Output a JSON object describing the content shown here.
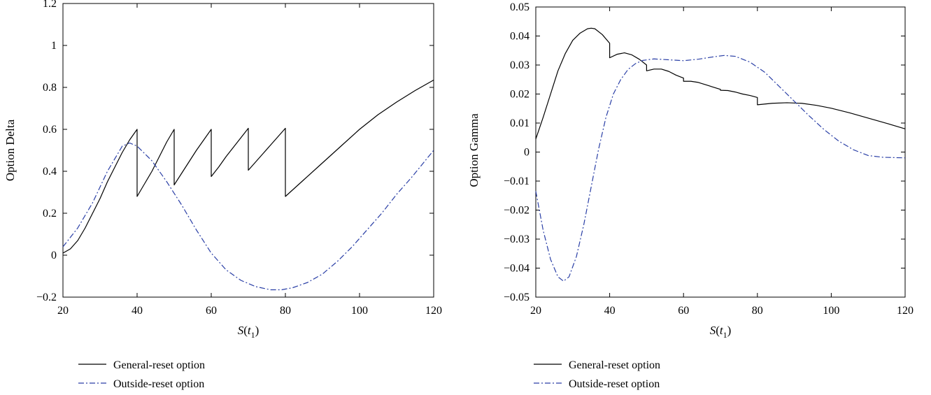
{
  "chart_data": [
    {
      "type": "line",
      "title": "",
      "xlabel_main": "S",
      "xlabel_arg": "t",
      "xlabel_sub": "1",
      "ylabel": "Option Delta",
      "xlim": [
        20,
        120
      ],
      "ylim": [
        -0.2,
        1.2
      ],
      "xticks": [
        "20",
        "40",
        "60",
        "80",
        "100",
        "120"
      ],
      "yticks": [
        "−0.2",
        "0",
        "0.2",
        "0.4",
        "0.6",
        "0.8",
        "1",
        "1.2"
      ],
      "yticks_values": [
        -0.2,
        0,
        0.2,
        0.4,
        0.6,
        0.8,
        1.0,
        1.2
      ],
      "grid": false,
      "legend_position": "below",
      "series": [
        {
          "name": "General-reset option",
          "color": "#000000",
          "style": "solid",
          "x": [
            20,
            22,
            24,
            26,
            28,
            30,
            32,
            34,
            36,
            38,
            40,
            40,
            42,
            44,
            46,
            48,
            50,
            50,
            52,
            54,
            56,
            58,
            60,
            60,
            62,
            64,
            66,
            68,
            70,
            70,
            72,
            74,
            76,
            78,
            80,
            80,
            85,
            90,
            95,
            100,
            105,
            110,
            115,
            120
          ],
          "y": [
            0.01,
            0.03,
            0.07,
            0.13,
            0.2,
            0.27,
            0.35,
            0.42,
            0.49,
            0.55,
            0.6,
            0.28,
            0.34,
            0.4,
            0.47,
            0.54,
            0.6,
            0.335,
            0.39,
            0.445,
            0.5,
            0.55,
            0.6,
            0.375,
            0.42,
            0.47,
            0.515,
            0.56,
            0.605,
            0.405,
            0.445,
            0.485,
            0.525,
            0.565,
            0.605,
            0.28,
            0.36,
            0.44,
            0.52,
            0.6,
            0.67,
            0.73,
            0.785,
            0.835
          ]
        },
        {
          "name": "Outside-reset option",
          "color": "#2a3fa6",
          "style": "dashdot",
          "x": [
            20,
            24,
            28,
            32,
            36,
            38,
            40,
            44,
            48,
            52,
            56,
            60,
            64,
            68,
            72,
            76,
            79,
            82,
            86,
            90,
            94,
            98,
            102,
            106,
            110,
            114,
            120
          ],
          "y": [
            0.04,
            0.13,
            0.25,
            0.4,
            0.52,
            0.535,
            0.52,
            0.45,
            0.35,
            0.24,
            0.12,
            0.01,
            -0.07,
            -0.12,
            -0.15,
            -0.165,
            -0.165,
            -0.155,
            -0.13,
            -0.09,
            -0.03,
            0.04,
            0.12,
            0.2,
            0.29,
            0.37,
            0.5
          ]
        }
      ]
    },
    {
      "type": "line",
      "title": "",
      "xlabel_main": "S",
      "xlabel_arg": "t",
      "xlabel_sub": "1",
      "ylabel": "Option Gamma",
      "xlim": [
        20,
        120
      ],
      "ylim": [
        -0.05,
        0.05
      ],
      "xticks": [
        "20",
        "40",
        "60",
        "80",
        "100",
        "120"
      ],
      "yticks": [
        "−0.05",
        "−0.04",
        "−0.03",
        "−0.02",
        "−0.01",
        "0",
        "0.01",
        "0.02",
        "0.03",
        "0.04",
        "0.05"
      ],
      "yticks_values": [
        -0.05,
        -0.04,
        -0.03,
        -0.02,
        -0.01,
        0,
        0.01,
        0.02,
        0.03,
        0.04,
        0.05
      ],
      "grid": false,
      "legend_position": "below",
      "series": [
        {
          "name": "General-reset option",
          "color": "#000000",
          "style": "solid",
          "x": [
            20,
            22,
            24,
            26,
            28,
            30,
            32,
            34,
            35,
            36,
            38,
            40,
            40,
            42,
            44,
            46,
            48,
            50,
            50,
            52,
            54,
            56,
            58,
            60,
            60,
            62,
            64,
            66,
            68,
            70,
            70,
            72,
            74,
            76,
            78,
            80,
            80,
            84,
            88,
            92,
            96,
            100,
            105,
            110,
            115,
            120
          ],
          "y": [
            0.0045,
            0.012,
            0.02,
            0.028,
            0.034,
            0.0385,
            0.041,
            0.0425,
            0.0427,
            0.0425,
            0.0405,
            0.0375,
            0.0325,
            0.0337,
            0.0342,
            0.0335,
            0.032,
            0.03,
            0.028,
            0.0286,
            0.0286,
            0.0278,
            0.0265,
            0.0255,
            0.0244,
            0.0244,
            0.024,
            0.0232,
            0.0224,
            0.0216,
            0.0213,
            0.0212,
            0.0207,
            0.02,
            0.0195,
            0.0188,
            0.0163,
            0.0168,
            0.017,
            0.0168,
            0.0161,
            0.0151,
            0.0135,
            0.0117,
            0.0099,
            0.008
          ]
        },
        {
          "name": "Outside-reset option",
          "color": "#2a3fa6",
          "style": "dashdot",
          "x": [
            20,
            22,
            24,
            26,
            27.5,
            29,
            31,
            33,
            35,
            37,
            39,
            41,
            43,
            45,
            47,
            49,
            52,
            56,
            60,
            64,
            68,
            71,
            74,
            78,
            82,
            86,
            90,
            94,
            98,
            102,
            106,
            110,
            114,
            120
          ],
          "y": [
            -0.0135,
            -0.027,
            -0.037,
            -0.043,
            -0.0445,
            -0.043,
            -0.036,
            -0.025,
            -0.012,
            0.001,
            0.012,
            0.02,
            0.025,
            0.0285,
            0.0305,
            0.0316,
            0.0321,
            0.0318,
            0.0315,
            0.032,
            0.0328,
            0.0333,
            0.033,
            0.031,
            0.0275,
            0.0225,
            0.0175,
            0.0125,
            0.0078,
            0.0038,
            0.0008,
            -0.0012,
            -0.0018,
            -0.002
          ]
        }
      ]
    }
  ]
}
